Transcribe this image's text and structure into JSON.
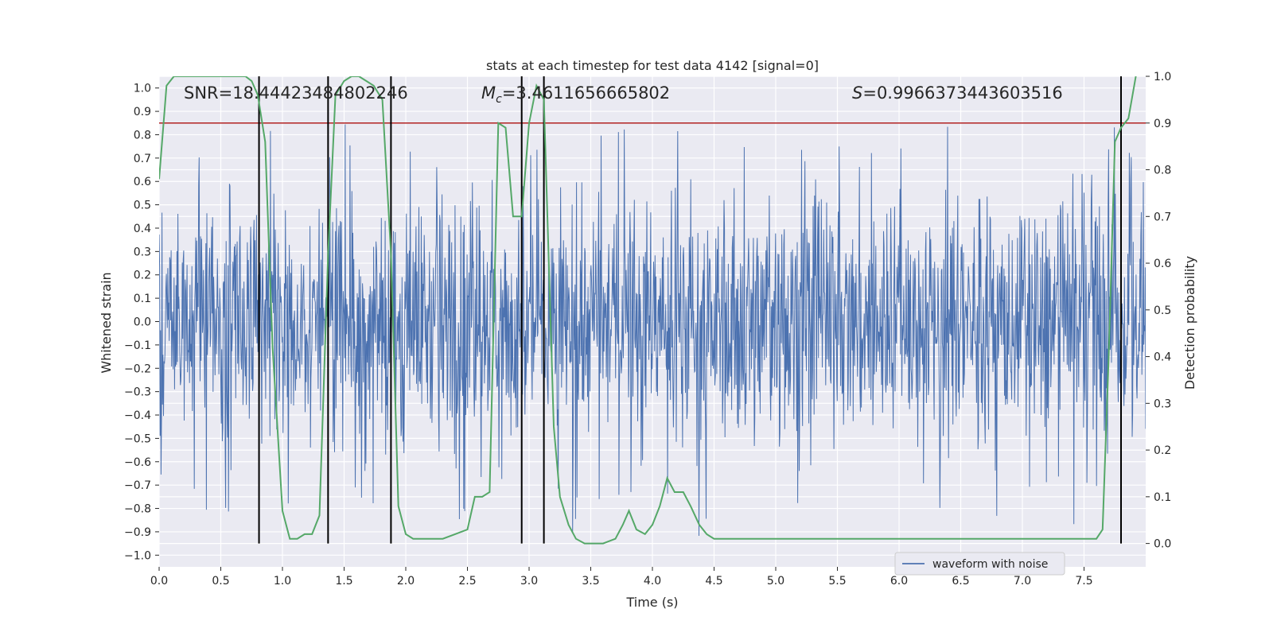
{
  "chart_data": {
    "type": "line",
    "title": "stats at each timestep for test data 4142 [signal=0]",
    "xlabel": "Time (s)",
    "ylabel_left": "Whitened strain",
    "ylabel_right": "Detection probability",
    "xlim": [
      0,
      8
    ],
    "ylim_left": [
      -1.05,
      1.05
    ],
    "ylim_right": [
      -0.05,
      1.0
    ],
    "x_ticks": [
      0.0,
      0.5,
      1.0,
      1.5,
      2.0,
      2.5,
      3.0,
      3.5,
      4.0,
      4.5,
      5.0,
      5.5,
      6.0,
      6.5,
      7.0,
      7.5
    ],
    "x_tick_labels": [
      "0.0",
      "0.5",
      "1.0",
      "1.5",
      "2.0",
      "2.5",
      "3.0",
      "3.5",
      "4.0",
      "4.5",
      "5.0",
      "5.5",
      "6.0",
      "6.5",
      "7.0",
      "7.5"
    ],
    "y_ticks_left": [
      -1.0,
      -0.9,
      -0.8,
      -0.7,
      -0.6,
      -0.5,
      -0.4,
      -0.3,
      -0.2,
      -0.1,
      0.0,
      0.1,
      0.2,
      0.3,
      0.4,
      0.5,
      0.6,
      0.7,
      0.8,
      0.9,
      1.0
    ],
    "y_tick_labels_left": [
      "−1.0",
      "−0.9",
      "−0.8",
      "−0.7",
      "−0.6",
      "−0.5",
      "−0.4",
      "−0.3",
      "−0.2",
      "−0.1",
      "0.0",
      "0.1",
      "0.2",
      "0.3",
      "0.4",
      "0.5",
      "0.6",
      "0.7",
      "0.8",
      "0.9",
      "1.0"
    ],
    "y_ticks_right": [
      0.0,
      0.1,
      0.2,
      0.3,
      0.4,
      0.5,
      0.6,
      0.7,
      0.8,
      0.9,
      1.0
    ],
    "y_tick_labels_right": [
      "0.0",
      "0.1",
      "0.2",
      "0.3",
      "0.4",
      "0.5",
      "0.6",
      "0.7",
      "0.8",
      "0.9",
      "1.0"
    ],
    "annotations": {
      "snr": "SNR=18.44423484802246",
      "mc_symbol": "M",
      "mc_sub": "c",
      "mc_value": "=3.4611656665802",
      "s_symbol": "S",
      "s_value": "=0.9966373443603516"
    },
    "legend": {
      "label": "waveform with noise",
      "placement": "lower-right"
    },
    "threshold": {
      "value": 0.9,
      "axis": "right",
      "color": "#b22222"
    },
    "vertical_lines": [
      0.81,
      1.37,
      1.88,
      2.94,
      3.12,
      7.8
    ],
    "series": [
      {
        "name": "waveform with noise",
        "axis": "left",
        "color": "#4c72b0",
        "representation": "dense noisy waveform, amplitude approx ±0.35 with spikes up to ±0.95",
        "sampled_points": 2048
      },
      {
        "axis": "right",
        "color": "#55a868",
        "x": [
          0.0,
          0.06,
          0.12,
          0.2,
          0.3,
          0.4,
          0.5,
          0.6,
          0.7,
          0.75,
          0.8,
          0.86,
          0.92,
          1.0,
          1.06,
          1.12,
          1.18,
          1.24,
          1.3,
          1.37,
          1.43,
          1.5,
          1.56,
          1.62,
          1.68,
          1.74,
          1.81,
          1.88,
          1.94,
          2.0,
          2.06,
          2.12,
          2.2,
          2.3,
          2.4,
          2.5,
          2.56,
          2.62,
          2.68,
          2.75,
          2.81,
          2.87,
          2.94,
          3.0,
          3.06,
          3.12,
          3.2,
          3.25,
          3.32,
          3.38,
          3.45,
          3.5,
          3.6,
          3.7,
          3.76,
          3.81,
          3.87,
          3.94,
          4.0,
          4.06,
          4.12,
          4.18,
          4.25,
          4.31,
          4.38,
          4.44,
          4.5,
          4.6,
          4.8,
          5.0,
          5.2,
          5.4,
          5.6,
          5.8,
          6.0,
          6.2,
          6.4,
          6.5,
          6.6,
          6.8,
          7.0,
          7.2,
          7.4,
          7.6,
          7.65,
          7.7,
          7.75,
          7.8,
          7.86,
          7.92
        ],
        "values": [
          0.78,
          0.98,
          1.0,
          1.0,
          1.0,
          1.0,
          1.0,
          1.0,
          1.0,
          0.99,
          0.96,
          0.86,
          0.42,
          0.07,
          0.01,
          0.01,
          0.02,
          0.02,
          0.06,
          0.62,
          0.96,
          0.99,
          1.0,
          1.0,
          0.99,
          0.98,
          0.95,
          0.62,
          0.08,
          0.02,
          0.01,
          0.01,
          0.01,
          0.01,
          0.02,
          0.03,
          0.1,
          0.1,
          0.11,
          0.9,
          0.89,
          0.7,
          0.7,
          0.9,
          0.98,
          0.95,
          0.25,
          0.1,
          0.04,
          0.01,
          0.0,
          0.0,
          0.0,
          0.01,
          0.04,
          0.07,
          0.03,
          0.02,
          0.04,
          0.08,
          0.14,
          0.11,
          0.11,
          0.08,
          0.04,
          0.02,
          0.01,
          0.01,
          0.01,
          0.01,
          0.01,
          0.01,
          0.01,
          0.01,
          0.01,
          0.01,
          0.01,
          0.01,
          0.01,
          0.01,
          0.01,
          0.01,
          0.01,
          0.01,
          0.03,
          0.4,
          0.86,
          0.89,
          0.91,
          1.0
        ]
      }
    ]
  }
}
